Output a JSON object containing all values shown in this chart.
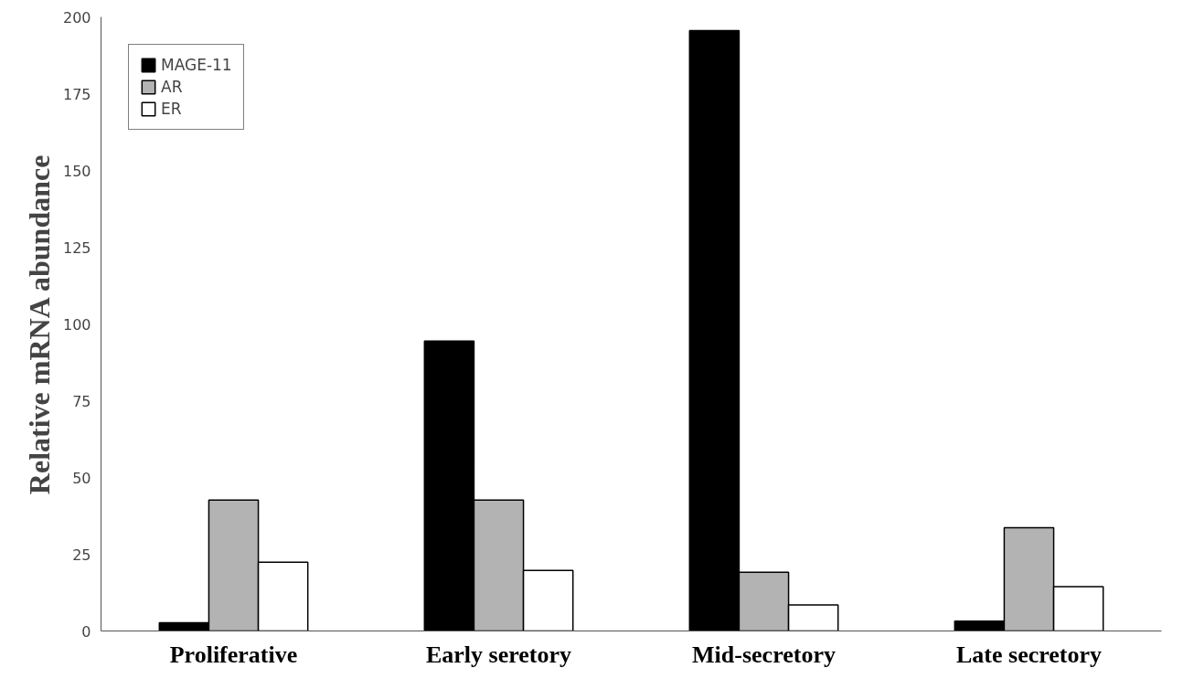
{
  "chart_data": {
    "type": "bar",
    "ylabel": "Relative mRNA abundance",
    "categories": [
      "Proliferative",
      "Early seretory",
      "Mid-secretory",
      "Late secretory"
    ],
    "series": [
      {
        "name": "MAGE-11",
        "color": "#000000",
        "values": [
          2.7,
          94.4,
          195.5,
          3.2
        ]
      },
      {
        "name": "AR",
        "color": "#b3b3b3",
        "values": [
          42.6,
          42.6,
          19.1,
          33.6
        ]
      },
      {
        "name": "ER",
        "color": "#ffffff",
        "values": [
          22.4,
          19.7,
          8.5,
          14.4
        ]
      }
    ],
    "ylim": [
      0,
      200
    ],
    "yticks": [
      0,
      25,
      50,
      75,
      100,
      125,
      150,
      175,
      200
    ],
    "grid": false,
    "legend": "top left"
  }
}
